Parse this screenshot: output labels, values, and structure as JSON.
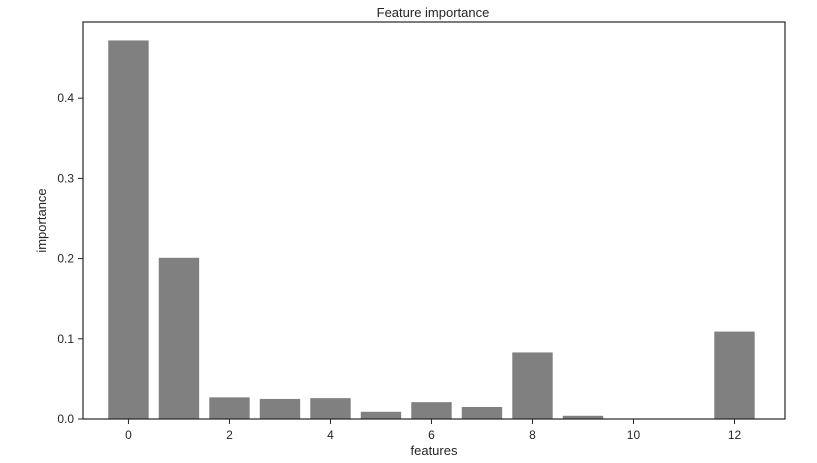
{
  "chart_data": {
    "type": "bar",
    "title": "Feature importance",
    "xlabel": "features",
    "ylabel": "importance",
    "x": [
      0,
      1,
      2,
      3,
      4,
      5,
      6,
      7,
      8,
      9,
      10,
      11,
      12
    ],
    "values": [
      0.472,
      0.201,
      0.027,
      0.025,
      0.026,
      0.009,
      0.021,
      0.015,
      0.083,
      0.004,
      0.0,
      0.0,
      0.109
    ],
    "xlim": [
      -0.9,
      13.0
    ],
    "ylim": [
      0,
      0.495
    ],
    "xticks": [
      0,
      2,
      4,
      6,
      8,
      10,
      12
    ],
    "xtick_labels": [
      "0",
      "2",
      "4",
      "6",
      "8",
      "10",
      "12"
    ],
    "yticks": [
      0.0,
      0.1,
      0.2,
      0.3,
      0.4
    ],
    "ytick_labels": [
      "0.0",
      "0.1",
      "0.2",
      "0.3",
      "0.4"
    ],
    "bar_color": "#808080",
    "grid": false
  }
}
